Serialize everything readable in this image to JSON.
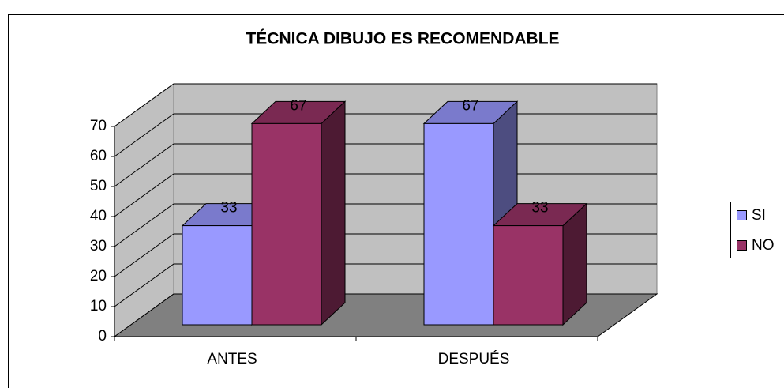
{
  "chart_data": {
    "type": "bar3d",
    "title": "TÉCNICA DIBUJO ES RECOMENDABLE",
    "categories": [
      "ANTES",
      "DESPUÉS"
    ],
    "series": [
      {
        "name": "SI",
        "color": "#9999ff",
        "values": [
          33,
          67
        ]
      },
      {
        "name": "NO",
        "color": "#993366",
        "values": [
          67,
          33
        ]
      }
    ],
    "ylim": [
      0,
      70
    ],
    "yticks": [
      0,
      10,
      20,
      30,
      40,
      50,
      60,
      70
    ],
    "grid": true,
    "legend": "right"
  }
}
